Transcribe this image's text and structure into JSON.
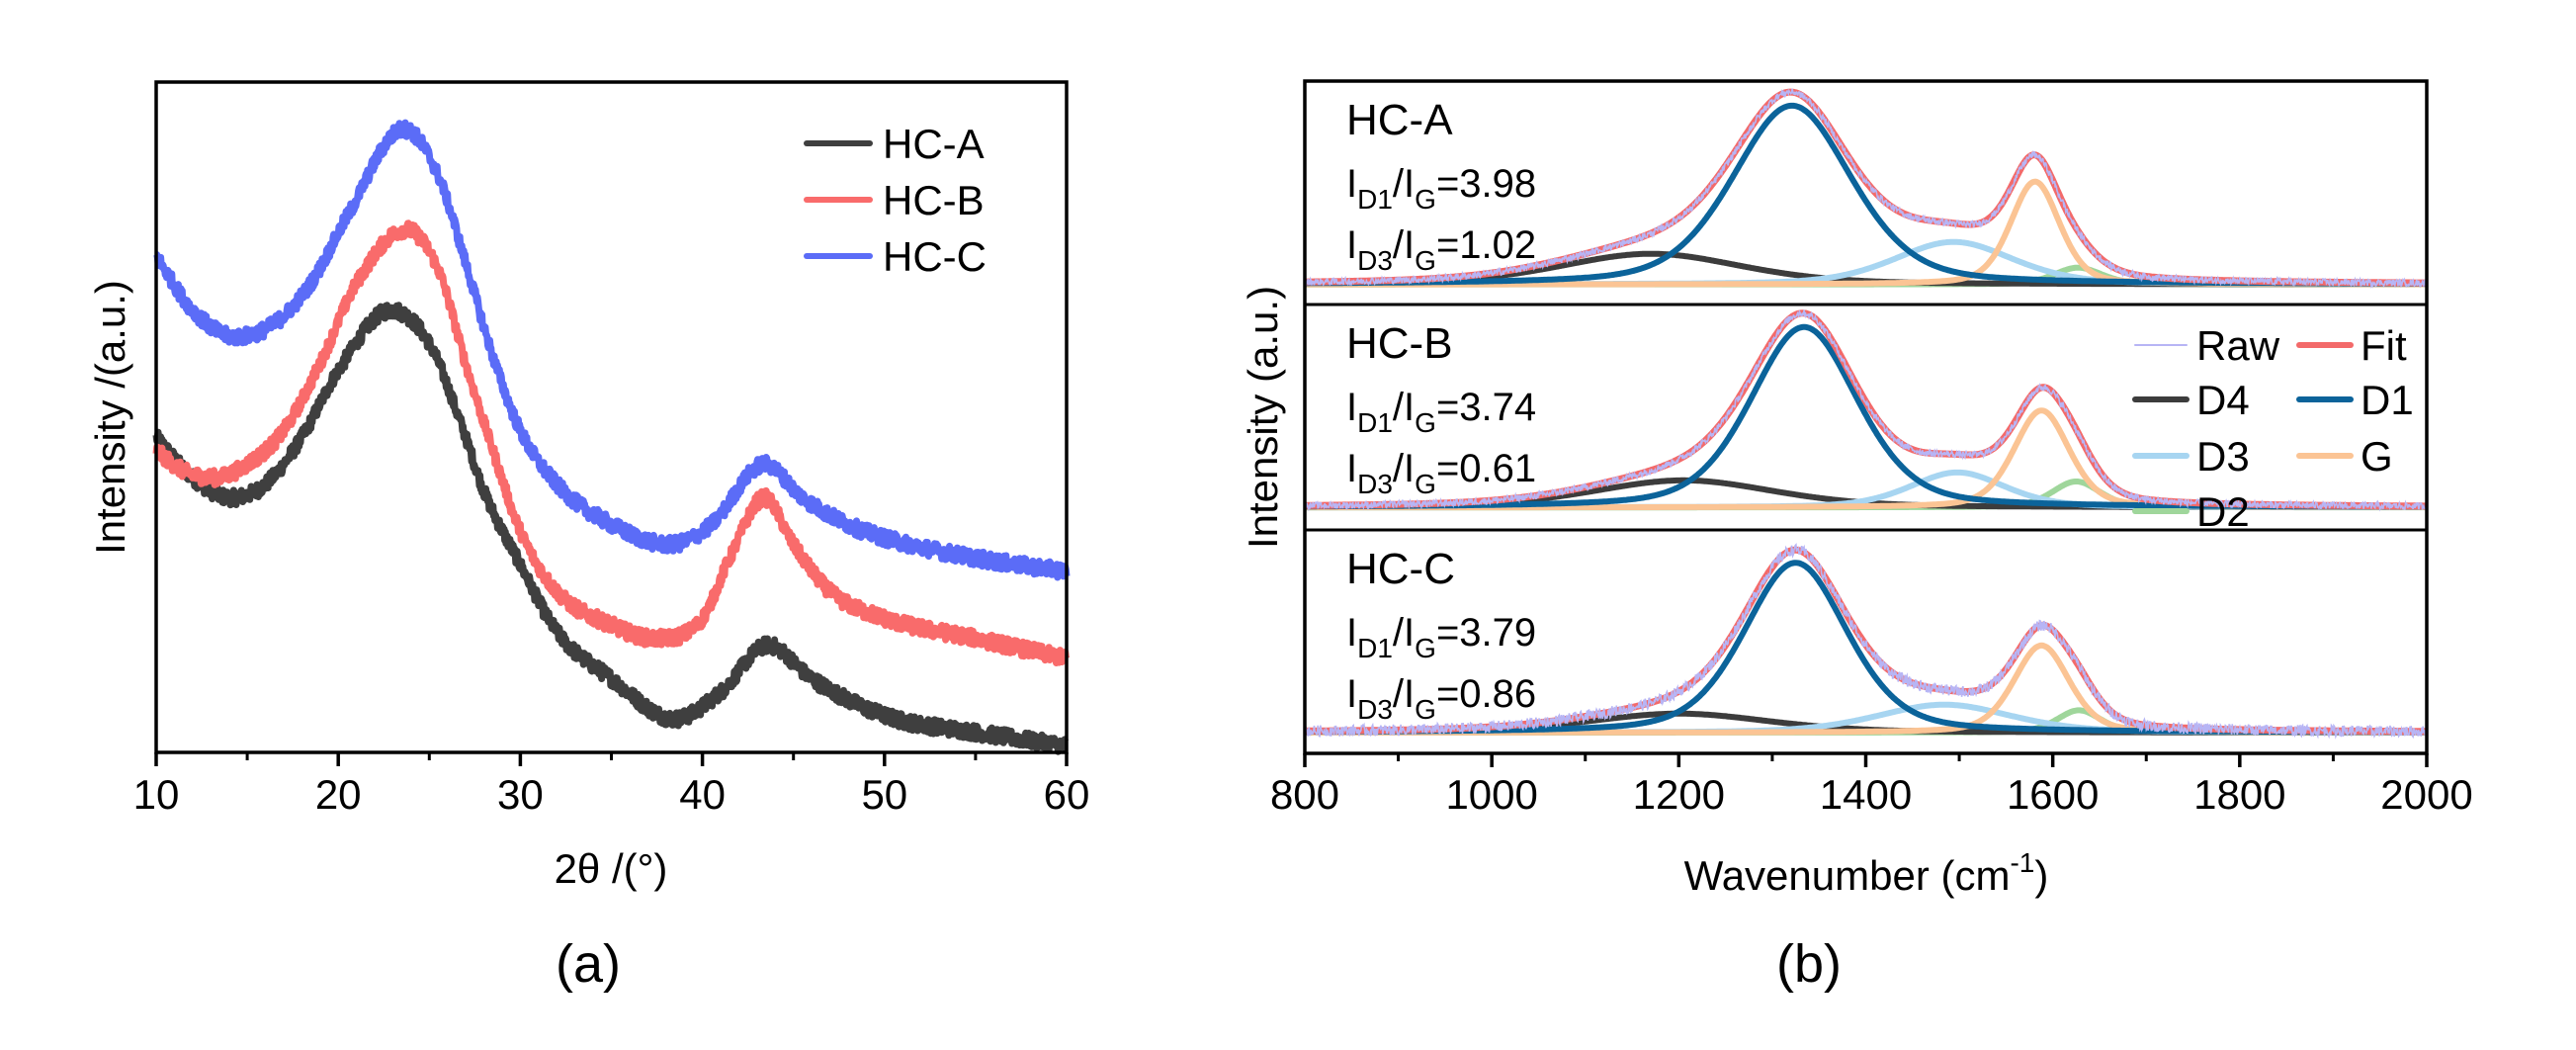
{
  "chart_data": [
    {
      "id": "xrd",
      "type": "line",
      "caption": "(a)",
      "title": "",
      "xlabel": "2θ /(°)",
      "ylabel": "Intensity /(a.u.)",
      "xlim": [
        10,
        60
      ],
      "ylim": [
        0,
        1
      ],
      "x_ticks": [
        10,
        20,
        30,
        40,
        50,
        60
      ],
      "x_tick_labels": [
        "10",
        "20",
        "30",
        "40",
        "50",
        "60"
      ],
      "x_minor_ticks": [
        15,
        25,
        35,
        45,
        55
      ],
      "y_ticks_shown": false,
      "grid": false,
      "legend": {
        "placement": "top-right",
        "entries": [
          "HC-A",
          "HC-B",
          "HC-C"
        ]
      },
      "series": [
        {
          "name": "HC-A",
          "color": "#3f3f3f",
          "x": [
            10,
            12,
            14.1,
            16,
            18,
            20,
            22.9,
            25,
            27,
            28,
            30,
            32,
            35,
            38.5,
            41,
            43.6,
            46,
            50,
            55,
            60
          ],
          "y": [
            0.47,
            0.41,
            0.38,
            0.4,
            0.47,
            0.57,
            0.66,
            0.61,
            0.47,
            0.39,
            0.28,
            0.18,
            0.11,
            0.05,
            0.09,
            0.16,
            0.11,
            0.055,
            0.03,
            0.01
          ]
        },
        {
          "name": "HC-B",
          "color": "#f96b6b",
          "x": [
            10,
            11.5,
            13.2,
            15,
            17,
            19,
            21,
            23.7,
            25.5,
            27,
            28.5,
            30,
            32,
            35,
            37.4,
            40,
            41.5,
            43.4,
            45,
            47,
            50,
            55,
            60
          ],
          "y": [
            0.45,
            0.42,
            0.41,
            0.43,
            0.48,
            0.58,
            0.7,
            0.78,
            0.72,
            0.58,
            0.45,
            0.33,
            0.24,
            0.19,
            0.17,
            0.2,
            0.29,
            0.38,
            0.31,
            0.24,
            0.2,
            0.17,
            0.14
          ]
        },
        {
          "name": "HC-C",
          "color": "#5b6cf7",
          "x": [
            10,
            12,
            14.3,
            16.5,
            18.5,
            20.5,
            23.6,
            25.5,
            27,
            28.5,
            30,
            32,
            35,
            38.2,
            40.5,
            43.4,
            45.5,
            48,
            50,
            55,
            60
          ],
          "y": [
            0.74,
            0.66,
            0.62,
            0.64,
            0.7,
            0.8,
            0.93,
            0.86,
            0.73,
            0.59,
            0.48,
            0.4,
            0.34,
            0.31,
            0.34,
            0.43,
            0.38,
            0.34,
            0.32,
            0.29,
            0.27
          ]
        }
      ]
    },
    {
      "id": "raman",
      "type": "line",
      "caption": "(b)",
      "title": "",
      "xlabel": "Wavenumber (cm",
      "xlabel_superscript": "-1",
      "xlabel_suffix": ")",
      "ylabel": "Intensity (a.u.)",
      "xlim": [
        800,
        2000
      ],
      "x_ticks": [
        800,
        1000,
        1200,
        1400,
        1600,
        1800,
        2000
      ],
      "x_tick_labels": [
        "800",
        "1000",
        "1200",
        "1400",
        "1600",
        "1800",
        "2000"
      ],
      "x_minor_ticks": [
        900,
        1100,
        1300,
        1500,
        1700,
        1900
      ],
      "y_ticks_shown": false,
      "grid": false,
      "stacked_panels": 3,
      "legend": {
        "placement": "middle-right",
        "entries": [
          {
            "name": "Raw",
            "color": "#b7b5f5"
          },
          {
            "name": "Fit",
            "color": "#f36a6a"
          },
          {
            "name": "D4",
            "color": "#3c3c3c"
          },
          {
            "name": "D1",
            "color": "#0b639a"
          },
          {
            "name": "D3",
            "color": "#a7d5f1"
          },
          {
            "name": "G",
            "color": "#fbc494"
          },
          {
            "name": "D2",
            "color": "#9fd69b"
          }
        ]
      },
      "component_colors": {
        "D4": "#3c3c3c",
        "D1": "#0b639a",
        "D3": "#a7d5f1",
        "G": "#fbc494",
        "D2": "#9fd69b",
        "Fit": "#f36a6a",
        "Raw": "#b7b5f5"
      },
      "panels": [
        {
          "sample": "HC-A",
          "ratios": [
            {
              "prefix": "I",
              "sub1": "D1",
              "mid": "/I",
              "sub2": "G",
              "value": "=3.98"
            },
            {
              "prefix": "I",
              "sub1": "D3",
              "mid": "/I",
              "sub2": "G",
              "value": "=1.02"
            }
          ],
          "baseline": 0.09,
          "components": [
            {
              "name": "D4",
              "center": 1170,
              "fwhm": 230,
              "height": 0.137
            },
            {
              "name": "D1",
              "center": 1321,
              "fwhm": 150,
              "height": 0.8
            },
            {
              "name": "D3",
              "center": 1494,
              "fwhm": 150,
              "height": 0.19
            },
            {
              "name": "G",
              "center": 1581,
              "fwhm": 62,
              "height": 0.46
            },
            {
              "name": "D2",
              "center": 1627,
              "fwhm": 60,
              "height": 0.075
            }
          ]
        },
        {
          "sample": "HC-B",
          "ratios": [
            {
              "prefix": "I",
              "sub1": "D1",
              "mid": "/I",
              "sub2": "G",
              "value": "=3.74"
            },
            {
              "prefix": "I",
              "sub1": "D3",
              "mid": "/I",
              "sub2": "G",
              "value": "=0.61"
            }
          ],
          "baseline": 0.1,
          "components": [
            {
              "name": "D4",
              "center": 1205,
              "fwhm": 230,
              "height": 0.12
            },
            {
              "name": "D1",
              "center": 1334,
              "fwhm": 135,
              "height": 0.8
            },
            {
              "name": "D3",
              "center": 1498,
              "fwhm": 120,
              "height": 0.155
            },
            {
              "name": "G",
              "center": 1588,
              "fwhm": 70,
              "height": 0.43
            },
            {
              "name": "D2",
              "center": 1625,
              "fwhm": 60,
              "height": 0.115
            }
          ]
        },
        {
          "sample": "HC-C",
          "ratios": [
            {
              "prefix": "I",
              "sub1": "D1",
              "mid": "/I",
              "sub2": "G",
              "value": "=3.79"
            },
            {
              "prefix": "I",
              "sub1": "D3",
              "mid": "/I",
              "sub2": "G",
              "value": "=0.86"
            }
          ],
          "baseline": 0.093,
          "components": [
            {
              "name": "D4",
              "center": 1200,
              "fwhm": 230,
              "height": 0.085
            },
            {
              "name": "D1",
              "center": 1325,
              "fwhm": 130,
              "height": 0.76
            },
            {
              "name": "D3",
              "center": 1484,
              "fwhm": 170,
              "height": 0.125
            },
            {
              "name": "G",
              "center": 1588,
              "fwhm": 70,
              "height": 0.39
            },
            {
              "name": "D2",
              "center": 1628,
              "fwhm": 55,
              "height": 0.1
            }
          ]
        }
      ]
    }
  ]
}
